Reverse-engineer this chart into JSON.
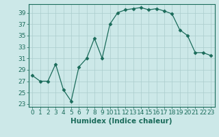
{
  "x": [
    0,
    1,
    2,
    3,
    4,
    5,
    6,
    7,
    8,
    9,
    10,
    11,
    12,
    13,
    14,
    15,
    16,
    17,
    18,
    19,
    20,
    21,
    22,
    23
  ],
  "y": [
    28,
    27,
    27,
    30,
    25.5,
    23.5,
    29.5,
    31,
    34.5,
    31,
    37,
    39,
    39.5,
    39.7,
    39.9,
    39.5,
    39.7,
    39.3,
    38.8,
    36,
    35,
    32,
    32,
    31.5
  ],
  "xlabel": "Humidex (Indice chaleur)",
  "xlim": [
    -0.5,
    23.5
  ],
  "ylim": [
    22.5,
    40.5
  ],
  "yticks": [
    23,
    25,
    27,
    29,
    31,
    33,
    35,
    37,
    39
  ],
  "xticks": [
    0,
    1,
    2,
    3,
    4,
    5,
    6,
    7,
    8,
    9,
    10,
    11,
    12,
    13,
    14,
    15,
    16,
    17,
    18,
    19,
    20,
    21,
    22,
    23
  ],
  "line_color": "#1a6b5a",
  "marker": "D",
  "marker_size": 2.5,
  "bg_color": "#cce8e8",
  "grid_color": "#aacccc",
  "tick_label_fontsize": 6.5,
  "xlabel_fontsize": 7.5
}
